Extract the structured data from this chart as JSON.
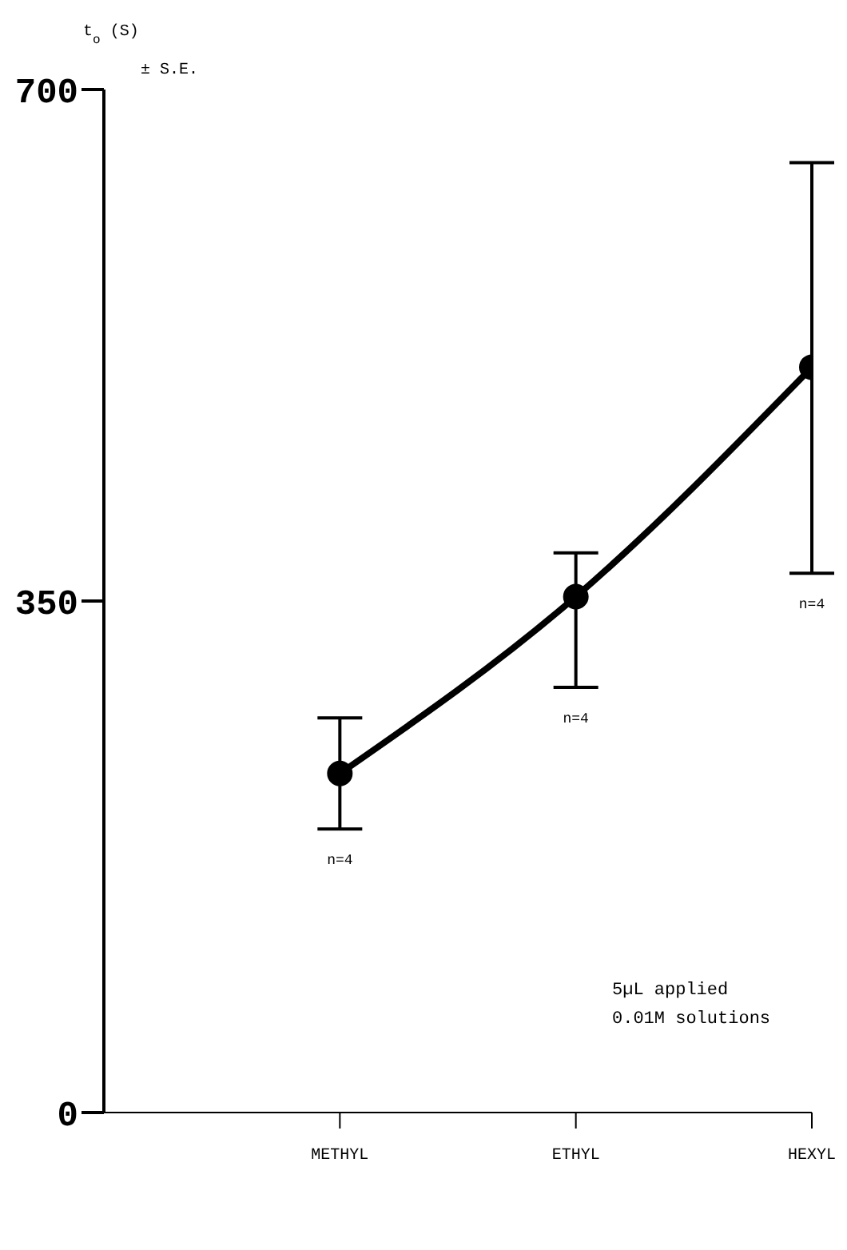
{
  "chart_data": {
    "type": "line",
    "ylabel": "t$_{o}$ (S)\n± S.E.",
    "categories": [
      "METHYL",
      "ETHYL",
      "HEXYL"
    ],
    "series": [
      {
        "color": "#000000",
        "values": [
          232,
          353,
          510
        ],
        "errors": [
          [
            194,
            270
          ],
          [
            291,
            383
          ],
          [
            369,
            650
          ]
        ]
      }
    ],
    "ylim": [
      0,
      700
    ],
    "yticks": [
      0,
      350,
      700
    ],
    "grid": false,
    "legend": false,
    "marker": "circle",
    "line_style": "solid",
    "annotations": [
      {
        "text": "n=4",
        "x": "METHYL",
        "y": 194
      },
      {
        "text": "n=4",
        "x": "ETHYL",
        "y": 291
      },
      {
        "text": "n=4",
        "x": "HEXYL",
        "y": 369
      },
      "5µL applied",
      "0.01M solutions"
    ]
  }
}
